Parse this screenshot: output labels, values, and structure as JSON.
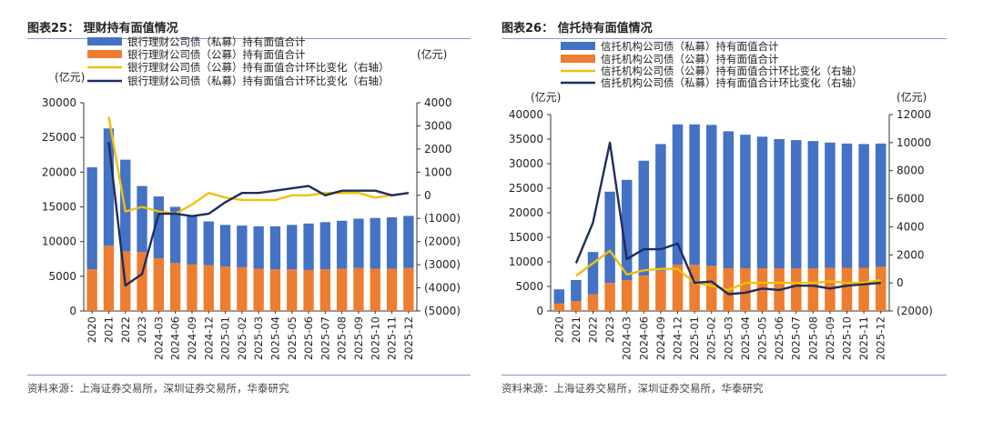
{
  "left": {
    "title": "图表25： 理财持有面值情况",
    "source": "资料来源：上海证券交易所，深圳证券交易所，华泰研究"
  },
  "right": {
    "title": "图表26： 信托持有面值情况",
    "source": "资料来源：上海证券交易所，深圳证券交易所，华泰研究"
  },
  "colors": {
    "private_bar": "#4472c4",
    "public_bar": "#ed7d31",
    "public_line": "#f0c00a",
    "private_line": "#1f2d5e"
  },
  "chart_data": [
    {
      "type": "bar",
      "stacked": true,
      "title": "理财持有面值情况",
      "ylabel": "(亿元)",
      "y2label": "(亿元)",
      "ylim": [
        0,
        30000
      ],
      "y2lim": [
        -5000,
        4000
      ],
      "yticks": [
        0,
        5000,
        10000,
        15000,
        20000,
        25000,
        30000
      ],
      "y2ticks": [
        -5000,
        -4000,
        -3000,
        -2000,
        -1000,
        0,
        1000,
        2000,
        3000,
        4000
      ],
      "ytick_labels": [
        "0",
        "5000",
        "10000",
        "15000",
        "20000",
        "25000",
        "30000"
      ],
      "y2tick_labels": [
        "(5000)",
        "(4000)",
        "(3000)",
        "(2000)",
        "(1000)",
        "0",
        "1000",
        "2000",
        "3000",
        "4000"
      ],
      "categories": [
        "2020",
        "2021",
        "2022",
        "2023",
        "2024-03",
        "2024-06",
        "2024-09",
        "2024-12",
        "2025-01",
        "2025-02",
        "2025-03",
        "2025-04",
        "2025-05",
        "2025-06",
        "2025-07",
        "2025-08",
        "2025-09",
        "2025-10",
        "2025-11",
        "2025-12"
      ],
      "series": [
        {
          "name": "银行理财公司债（公募）持有面值合计",
          "kind": "bar",
          "axis": "left",
          "values": [
            6000,
            9400,
            8600,
            8500,
            7600,
            6900,
            6700,
            6600,
            6400,
            6300,
            6100,
            6000,
            6000,
            5900,
            6000,
            6100,
            6200,
            6100,
            6100,
            6200
          ]
        },
        {
          "name": "银行理财公司债（私募）持有面值合计",
          "kind": "bar",
          "axis": "left",
          "values": [
            14700,
            16900,
            13200,
            9500,
            8900,
            8100,
            7100,
            6300,
            6000,
            6000,
            6100,
            6200,
            6400,
            6700,
            6800,
            6900,
            7100,
            7300,
            7400,
            7500
          ]
        },
        {
          "name": "银行理财公司债（公募）持有面值合计环比变化（右轴）",
          "kind": "line",
          "axis": "right",
          "values": [
            null,
            3400,
            -700,
            -500,
            -700,
            -800,
            -400,
            100,
            -100,
            -200,
            -200,
            -200,
            0,
            0,
            100,
            100,
            100,
            -100,
            0,
            100
          ]
        },
        {
          "name": "银行理财公司债（私募）持有面值合计环比变化（右轴）",
          "kind": "line",
          "axis": "right",
          "values": [
            null,
            2300,
            -3900,
            -3400,
            -800,
            -800,
            -900,
            -800,
            -300,
            100,
            100,
            200,
            300,
            400,
            0,
            200,
            200,
            200,
            0,
            100
          ]
        }
      ]
    },
    {
      "type": "bar",
      "stacked": true,
      "title": "信托持有面值情况",
      "ylabel": "(亿元)",
      "y2label": "(亿元)",
      "ylim": [
        0,
        40000
      ],
      "y2lim": [
        -2000,
        12000
      ],
      "yticks": [
        0,
        5000,
        10000,
        15000,
        20000,
        25000,
        30000,
        35000,
        40000
      ],
      "y2ticks": [
        -2000,
        0,
        2000,
        4000,
        6000,
        8000,
        10000,
        12000
      ],
      "ytick_labels": [
        "0",
        "5000",
        "10000",
        "15000",
        "20000",
        "25000",
        "30000",
        "35000",
        "40000"
      ],
      "y2tick_labels": [
        "(2000)",
        "0",
        "2000",
        "4000",
        "6000",
        "8000",
        "10000",
        "12000"
      ],
      "categories": [
        "2020",
        "2021",
        "2022",
        "2023",
        "2024-03",
        "2024-06",
        "2024-09",
        "2024-12",
        "2025-01",
        "2025-02",
        "2025-03",
        "2025-04",
        "2025-05",
        "2025-06",
        "2025-07",
        "2025-08",
        "2025-09",
        "2025-10",
        "2025-11",
        "2025-12"
      ],
      "series": [
        {
          "name": "信托机构公司债（公募）持有面值合计",
          "kind": "bar",
          "axis": "left",
          "values": [
            1500,
            2000,
            3400,
            5700,
            6300,
            7200,
            8200,
            9400,
            9400,
            9200,
            8700,
            8700,
            8700,
            8700,
            8700,
            8700,
            8800,
            8800,
            8800,
            9000
          ]
        },
        {
          "name": "信托机构公司债（私募）持有面值合计",
          "kind": "bar",
          "axis": "left",
          "values": [
            2900,
            4300,
            8600,
            18600,
            20400,
            23400,
            25800,
            28600,
            28600,
            28700,
            27900,
            27200,
            26800,
            26300,
            26100,
            25900,
            25500,
            25300,
            25200,
            25100
          ]
        },
        {
          "name": "信托机构公司债（公募）持有面值合计环比变化（右轴）",
          "kind": "line",
          "axis": "right",
          "values": [
            null,
            500,
            1400,
            2300,
            600,
            900,
            1000,
            1000,
            0,
            -200,
            -500,
            0,
            0,
            0,
            0,
            0,
            100,
            0,
            0,
            200
          ]
        },
        {
          "name": "信托机构公司债（私募）持有面值合计环比变化（右轴）",
          "kind": "line",
          "axis": "right",
          "values": [
            null,
            1400,
            4300,
            10000,
            1700,
            2400,
            2400,
            2800,
            0,
            100,
            -800,
            -700,
            -400,
            -500,
            -200,
            -200,
            -400,
            -200,
            -100,
            0
          ]
        }
      ]
    }
  ]
}
